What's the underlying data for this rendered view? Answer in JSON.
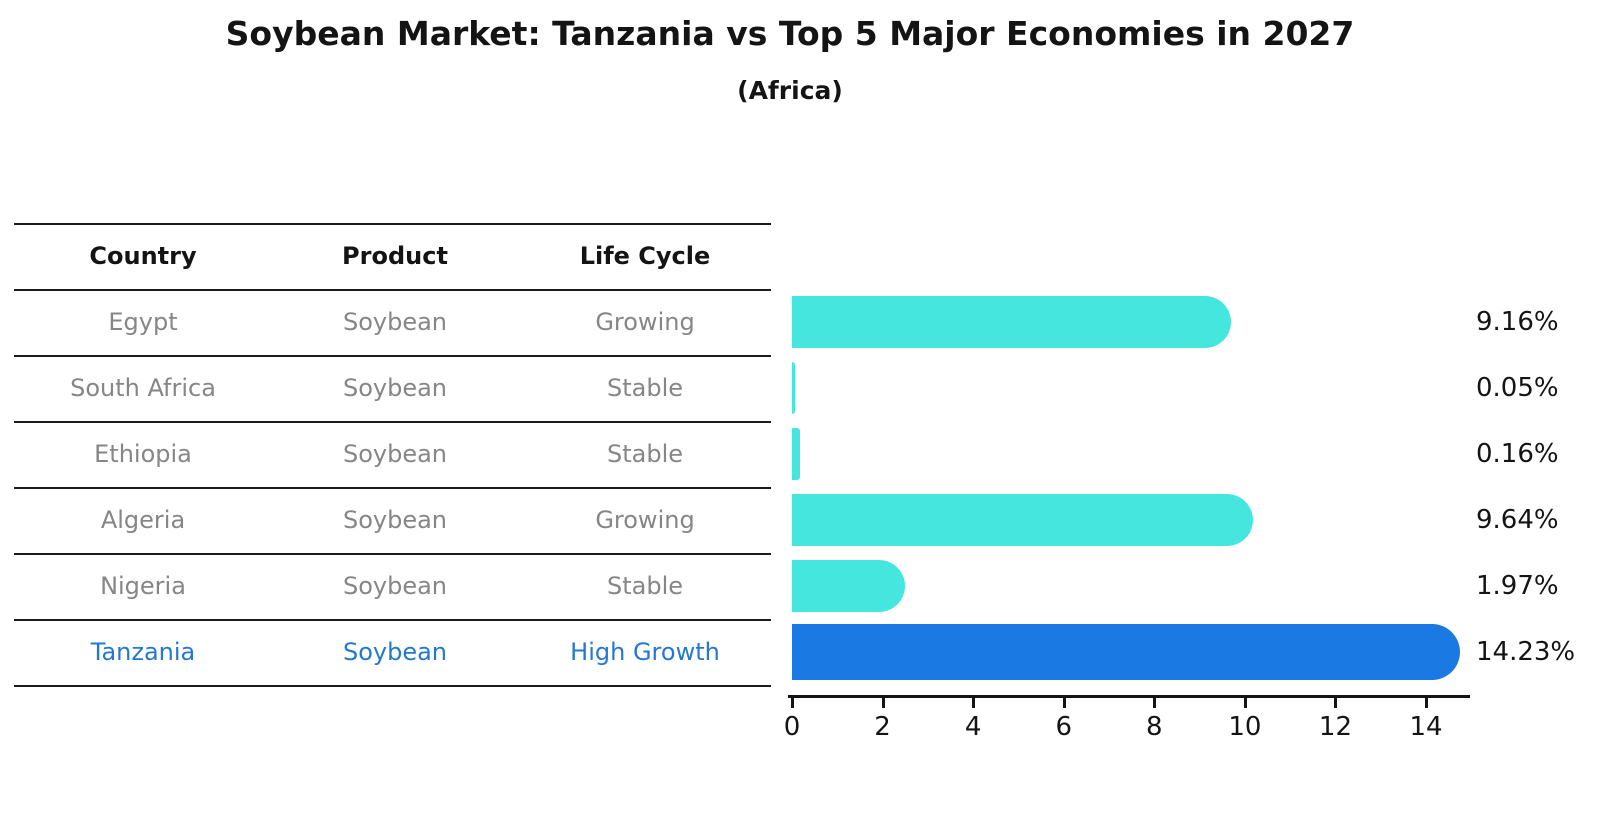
{
  "title": "Soybean Market: Tanzania vs Top 5 Major Economies in 2027",
  "subtitle": "(Africa)",
  "table": {
    "columns": [
      "Country",
      "Product",
      "Life Cycle"
    ]
  },
  "chart_data": {
    "type": "bar",
    "orientation": "horizontal",
    "title": "Soybean Market: Tanzania vs Top 5 Major Economies in 2027",
    "subtitle": "(Africa)",
    "xlabel": "",
    "ylabel": "",
    "xlim": [
      0,
      15
    ],
    "x_ticks": [
      0,
      2,
      4,
      6,
      8,
      10,
      12,
      14
    ],
    "grid": false,
    "legend": false,
    "rows": [
      {
        "country": "Egypt",
        "product": "Soybean",
        "life_cycle": "Growing",
        "value": 9.16,
        "value_label": "9.16%",
        "highlight": false
      },
      {
        "country": "South Africa",
        "product": "Soybean",
        "life_cycle": "Stable",
        "value": 0.05,
        "value_label": "0.05%",
        "highlight": false
      },
      {
        "country": "Ethiopia",
        "product": "Soybean",
        "life_cycle": "Stable",
        "value": 0.16,
        "value_label": "0.16%",
        "highlight": false
      },
      {
        "country": "Algeria",
        "product": "Soybean",
        "life_cycle": "Growing",
        "value": 9.64,
        "value_label": "9.64%",
        "highlight": false
      },
      {
        "country": "Nigeria",
        "product": "Soybean",
        "life_cycle": "Stable",
        "value": 1.97,
        "value_label": "1.97%",
        "highlight": false
      },
      {
        "country": "Tanzania",
        "product": "Soybean",
        "life_cycle": "High Growth",
        "value": 14.23,
        "value_label": "14.23%",
        "highlight": true
      }
    ],
    "colors": {
      "bar_default": "#45E6DE",
      "bar_highlight": "#1B79E4",
      "highlight_text": "#2478D0",
      "cell_text": "#868686",
      "header_text": "#141414",
      "axis_text": "#141414"
    }
  }
}
